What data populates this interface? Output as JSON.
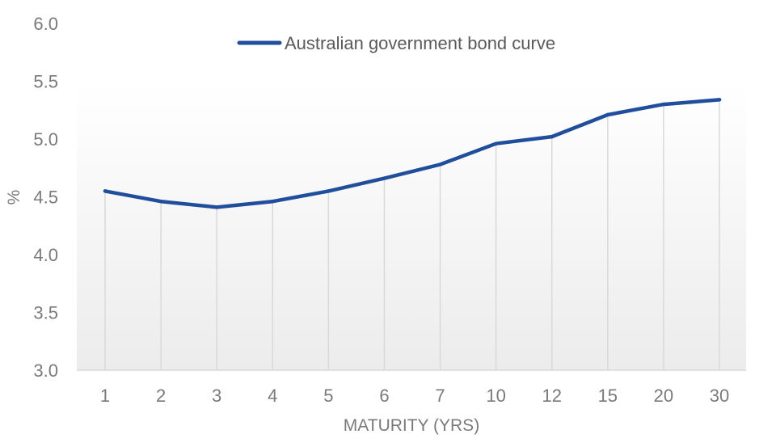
{
  "chart_data": {
    "type": "line",
    "x": [
      "1",
      "2",
      "3",
      "4",
      "5",
      "6",
      "7",
      "10",
      "12",
      "15",
      "20",
      "30"
    ],
    "series": [
      {
        "name": "Australian government bond curve",
        "values": [
          4.55,
          4.46,
          4.41,
          4.46,
          4.55,
          4.66,
          4.78,
          4.96,
          5.02,
          5.21,
          5.3,
          5.34
        ],
        "color": "#1f4e9d"
      }
    ],
    "xlabel": "MATURITY (YRS)",
    "ylabel": "%",
    "ylim": [
      3.0,
      6.0
    ],
    "yticks": [
      "3.0",
      "3.5",
      "4.0",
      "4.5",
      "5.0",
      "5.5",
      "6.0"
    ],
    "grid": "vertical drop lines at each point",
    "legend_position": "top"
  }
}
